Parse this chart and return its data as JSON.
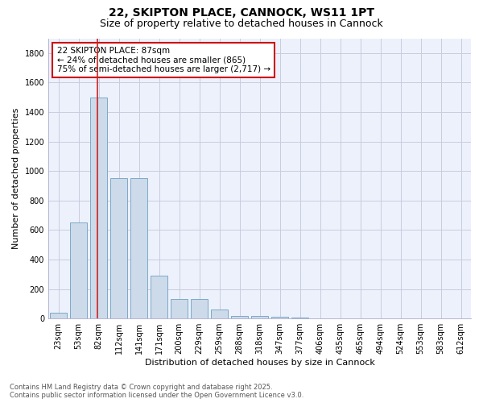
{
  "title_line1": "22, SKIPTON PLACE, CANNOCK, WS11 1PT",
  "title_line2": "Size of property relative to detached houses in Cannock",
  "xlabel": "Distribution of detached houses by size in Cannock",
  "ylabel": "Number of detached properties",
  "bar_color": "#cddaea",
  "bar_edge_color": "#7aaac8",
  "background_color": "#edf1fb",
  "grid_color": "#c8cce0",
  "vline_color": "#cc2222",
  "annotation_box_color": "#cc1111",
  "categories": [
    "23sqm",
    "53sqm",
    "82sqm",
    "112sqm",
    "141sqm",
    "171sqm",
    "200sqm",
    "229sqm",
    "259sqm",
    "288sqm",
    "318sqm",
    "347sqm",
    "377sqm",
    "406sqm",
    "435sqm",
    "465sqm",
    "494sqm",
    "524sqm",
    "553sqm",
    "583sqm",
    "612sqm"
  ],
  "values": [
    40,
    650,
    1500,
    950,
    950,
    290,
    130,
    130,
    60,
    20,
    20,
    10,
    5,
    0,
    0,
    0,
    0,
    0,
    0,
    0,
    0
  ],
  "ylim": [
    0,
    1900
  ],
  "yticks": [
    0,
    200,
    400,
    600,
    800,
    1000,
    1200,
    1400,
    1600,
    1800
  ],
  "annotation_text": "22 SKIPTON PLACE: 87sqm\n← 24% of detached houses are smaller (865)\n75% of semi-detached houses are larger (2,717) →",
  "vline_x_index": 2,
  "footer_line1": "Contains HM Land Registry data © Crown copyright and database right 2025.",
  "footer_line2": "Contains public sector information licensed under the Open Government Licence v3.0.",
  "title_fontsize": 10,
  "subtitle_fontsize": 9,
  "axis_label_fontsize": 8,
  "tick_fontsize": 7,
  "annotation_fontsize": 7.5,
  "footer_fontsize": 6
}
